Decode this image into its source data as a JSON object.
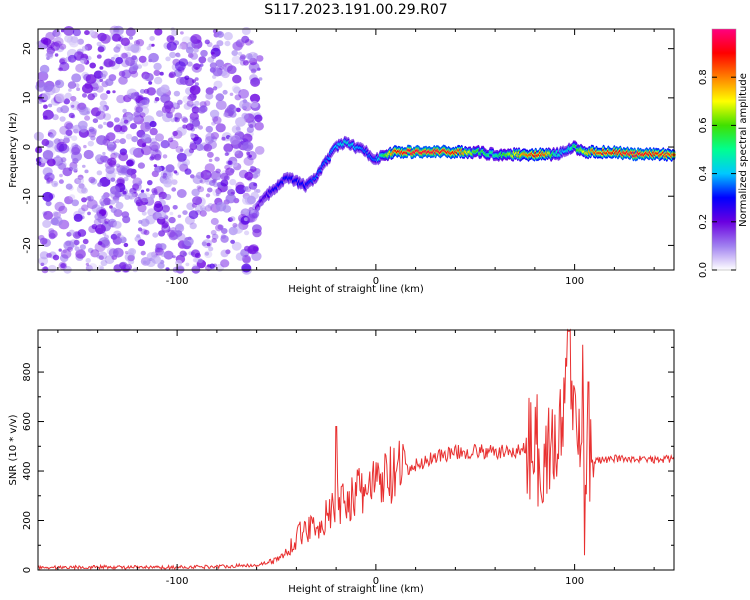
{
  "title": "S117.2023.191.00.29.R07",
  "colors": {
    "snr_line": "#e83030",
    "background": "#ffffff",
    "axis": "#000000"
  },
  "chart_data": [
    {
      "type": "heatmap",
      "xlabel": "Height of straight line (km)",
      "ylabel": "Frequency (Hz)",
      "xlim": [
        -170,
        150
      ],
      "ylim": [
        -25,
        24
      ],
      "x_ticks": [
        -100,
        0,
        100
      ],
      "y_ticks": [
        -20,
        -10,
        0,
        10,
        20
      ],
      "colorbar": {
        "label": "Normalized spectral amplitude",
        "range": [
          0,
          1
        ],
        "ticks": [
          0.0,
          0.2,
          0.4,
          0.6,
          0.8
        ],
        "colormap": [
          "#ffffff",
          "#a080f0",
          "#6a00e0",
          "#0000ff",
          "#00c8ff",
          "#00ff90",
          "#40e000",
          "#ffff00",
          "#ff8000",
          "#ff0000",
          "#ff0080"
        ]
      },
      "noise_region": {
        "x_range": [
          -170,
          -58
        ],
        "y_range": [
          -25,
          24
        ],
        "typical_amplitude": 0.15
      },
      "ridge": {
        "x": [
          -60,
          -55,
          -50,
          -45,
          -40,
          -35,
          -30,
          -25,
          -20,
          -15,
          -10,
          -5,
          0,
          5,
          10,
          20,
          30,
          40,
          50,
          60,
          70,
          80,
          85,
          90,
          95,
          100,
          105,
          110,
          120,
          130,
          140,
          150
        ],
        "frequency": [
          -12,
          -10,
          -8,
          -6,
          -7,
          -8,
          -6,
          -3,
          0,
          1,
          0,
          -1,
          -2.5,
          -1.5,
          -1,
          -1,
          -1,
          -1,
          -1,
          -1.5,
          -1.5,
          -1.5,
          -1.5,
          -1.5,
          -1,
          0,
          -1,
          -1,
          -1,
          -1.5,
          -1.5,
          -1.5
        ],
        "amplitude": [
          0.2,
          0.25,
          0.3,
          0.3,
          0.3,
          0.3,
          0.35,
          0.35,
          0.4,
          0.45,
          0.4,
          0.35,
          0.35,
          0.6,
          0.9,
          0.95,
          0.95,
          0.9,
          0.6,
          0.5,
          0.7,
          0.9,
          0.85,
          0.5,
          0.4,
          0.55,
          0.7,
          0.85,
          0.9,
          0.95,
          0.9,
          0.85
        ]
      }
    },
    {
      "type": "line",
      "xlabel": "Height of straight line (km)",
      "ylabel": "SNR (10 * v/v)",
      "xlim": [
        -170,
        150
      ],
      "ylim": [
        0,
        970
      ],
      "x_ticks": [
        -100,
        0,
        100
      ],
      "y_ticks": [
        0,
        200,
        400,
        600,
        800
      ],
      "series": [
        {
          "x": [
            -170,
            -140,
            -110,
            -80,
            -60,
            -50,
            -45,
            -40,
            -35,
            -30,
            -25,
            -20,
            -15,
            -10,
            -5,
            0,
            5,
            10,
            15,
            20,
            25,
            30,
            40,
            50,
            60,
            70,
            77,
            80,
            83,
            86,
            90,
            94,
            97,
            100,
            103,
            106,
            108,
            110,
            120,
            130,
            140,
            150
          ],
          "y": [
            10,
            12,
            10,
            14,
            20,
            40,
            70,
            130,
            170,
            180,
            210,
            260,
            290,
            300,
            330,
            340,
            370,
            380,
            400,
            420,
            440,
            460,
            475,
            480,
            475,
            480,
            490,
            490,
            440,
            480,
            500,
            560,
            920,
            620,
            520,
            500,
            460,
            440,
            450,
            450,
            445,
            450
          ],
          "peaks": [
            {
              "x": -20,
              "y": 580
            },
            {
              "x": 81,
              "y": 710
            },
            {
              "x": 97,
              "y": 965
            },
            {
              "x": 104,
              "y": 910
            },
            {
              "x": 107,
              "y": 760
            },
            {
              "x": 105,
              "y": 60
            }
          ]
        }
      ]
    }
  ]
}
